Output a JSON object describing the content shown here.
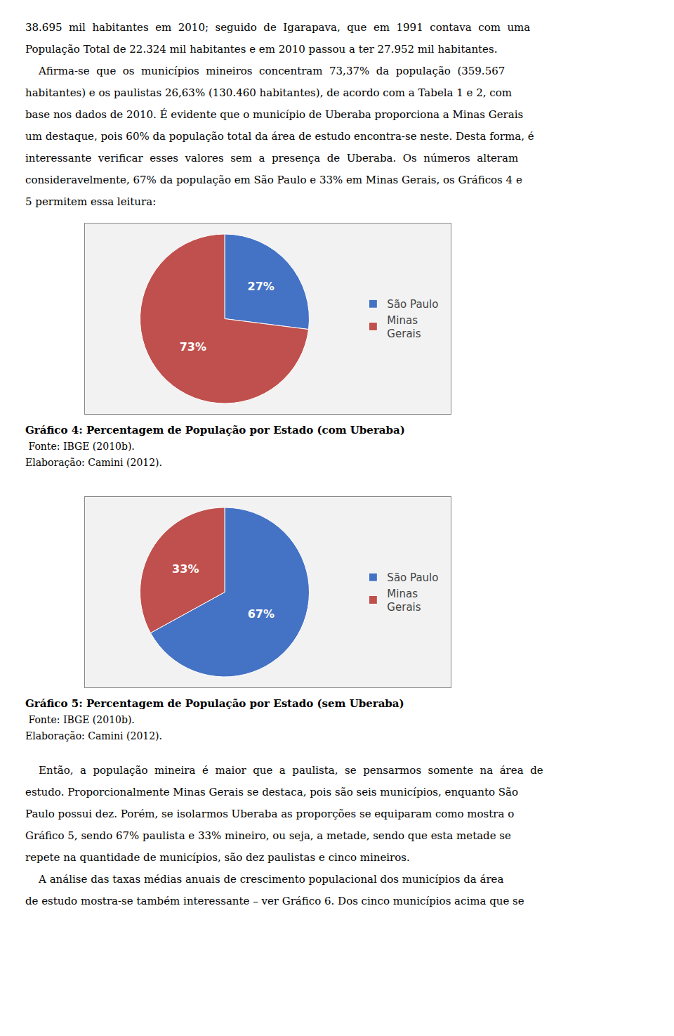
{
  "paragraphs_top": [
    "38.695  mil  habitantes  em  2010;  seguido  de  Igarapava,  que  em  1991  contava  com  uma",
    "População Total de 22.324 mil habitantes e em 2010 passou a ter 27.952 mil habitantes.",
    "    Afirma-se  que  os  municípios  mineiros  concentram  73,37%  da  população  (359.567",
    "habitantes) e os paulistas 26,63% (130.460 habitantes), de acordo com a Tabela 1 e 2, com",
    "base nos dados de 2010. É evidente que o município de Uberaba proporciona a Minas Gerais",
    "um destaque, pois 60% da população total da área de estudo encontra-se neste. Desta forma, é",
    "interessante  verificar  esses  valores  sem  a  presença  de  Uberaba.  Os  números  alteram",
    "consideravelmente, 67% da população em São Paulo e 33% em Minas Gerais, os Gráficos 4 e",
    "5 permitem essa leitura:"
  ],
  "chart_data": [
    {
      "type": "pie",
      "title": "Gráfico 4: Percentagem de População por Estado (com Uberaba)",
      "categories": [
        "São Paulo",
        "Minas\nGerais"
      ],
      "values": [
        27,
        73
      ],
      "value_labels": [
        "27%",
        "73%"
      ],
      "colors": [
        "#4472C4",
        "#C0504D"
      ],
      "data_labels": true,
      "legend": "right",
      "annotations": [
        " Fonte: IBGE (2010b).",
        "Elaboração: Camini (2012)."
      ]
    },
    {
      "type": "pie",
      "title": "Gráfico 5: Percentagem de População por Estado (sem Uberaba)",
      "categories": [
        "São Paulo",
        "Minas\nGerais"
      ],
      "values": [
        67,
        33
      ],
      "value_labels": [
        "67%",
        "33%"
      ],
      "colors": [
        "#4472C4",
        "#C0504D"
      ],
      "data_labels": true,
      "legend": "right",
      "annotations": [
        " Fonte: IBGE (2010b).",
        "Elaboração: Camini (2012)."
      ]
    }
  ],
  "paragraphs_bottom": [
    "    Então,  a  população  mineira  é  maior  que  a  paulista,  se  pensarmos  somente  na  área  de",
    "estudo. Proporcionalmente Minas Gerais se destaca, pois são seis municípios, enquanto São",
    "Paulo possui dez. Porém, se isolarmos Uberaba as proporções se equiparam como mostra o",
    "Gráfico 5, sendo 67% paulista e 33% mineiro, ou seja, a metade, sendo que esta metade se",
    "repete na quantidade de municípios, são dez paulistas e cinco mineiros.",
    "    A análise das taxas médias anuais de crescimento populacional dos municípios da área",
    "de estudo mostra-se também interessante – ver Gráfico 6. Dos cinco municípios acima que se"
  ]
}
